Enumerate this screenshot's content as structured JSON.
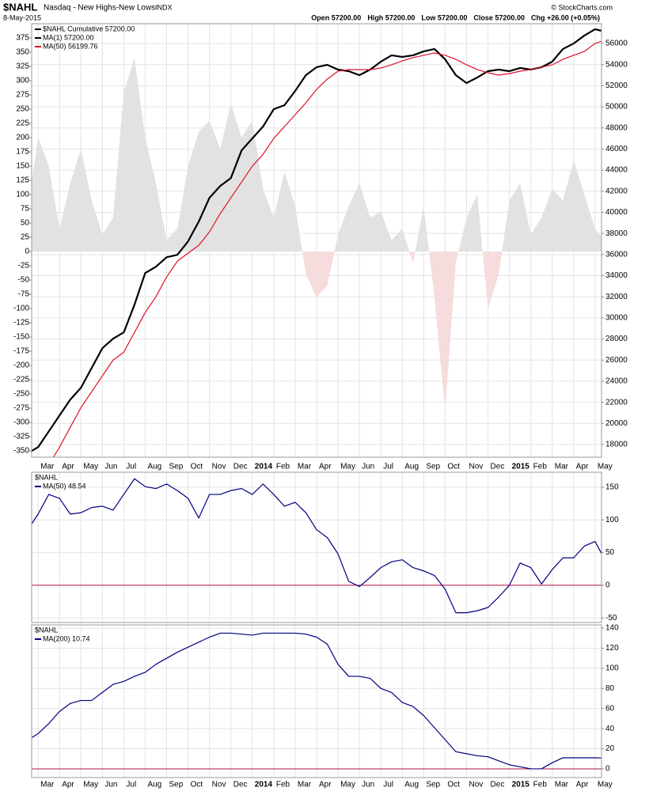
{
  "header": {
    "symbol": "$NAHL",
    "name": "Nasdaq - New Highs-New Lows",
    "exchange": "INDX",
    "date": "8-May-2015",
    "quote": [
      "Open 57200.00",
      "High 57200.00",
      "Low 57200.00",
      "Close 57200.00",
      "Chg +26.00 (+0.05%)"
    ],
    "copyright": "© StockCharts.com"
  },
  "chart_data": [
    {
      "type": "line",
      "yaxis_position": "left",
      "grid": true,
      "legend_title": "$NAHL Cumulative 57200.00",
      "x": [
        -0.3,
        0,
        0.5,
        1,
        1.5,
        2,
        2.5,
        3,
        3.5,
        4,
        4.5,
        5,
        5.5,
        6,
        6.5,
        7,
        7.5,
        8,
        8.5,
        9,
        9.5,
        10,
        10.5,
        11,
        11.5,
        12,
        12.5,
        13,
        13.5,
        14,
        14.5,
        15,
        15.5,
        16,
        16.5,
        17,
        17.5,
        18,
        18.5,
        19,
        19.5,
        20,
        20.5,
        21,
        21.5,
        22,
        22.5,
        23,
        23.5,
        24,
        24.5,
        25,
        25.5,
        26,
        26.3
      ],
      "xlim": [
        -0.3,
        26.3
      ],
      "xticks": [
        {
          "value": 0,
          "label": "Mar"
        },
        {
          "value": 1,
          "label": "Apr"
        },
        {
          "value": 2,
          "label": "May"
        },
        {
          "value": 3,
          "label": "Jun"
        },
        {
          "value": 4,
          "label": "Jul"
        },
        {
          "value": 5,
          "label": "Aug"
        },
        {
          "value": 6,
          "label": "Sep"
        },
        {
          "value": 7,
          "label": "Oct"
        },
        {
          "value": 8,
          "label": "Nov"
        },
        {
          "value": 9,
          "label": "Dec"
        },
        {
          "value": 10,
          "label": "2014"
        },
        {
          "value": 11,
          "label": "Feb"
        },
        {
          "value": 12,
          "label": "Mar"
        },
        {
          "value": 13,
          "label": "Apr"
        },
        {
          "value": 14,
          "label": "May"
        },
        {
          "value": 15,
          "label": "Jun"
        },
        {
          "value": 16,
          "label": "Jul"
        },
        {
          "value": 17,
          "label": "Aug"
        },
        {
          "value": 18,
          "label": "Sep"
        },
        {
          "value": 19,
          "label": "Oct"
        },
        {
          "value": 20,
          "label": "Nov"
        },
        {
          "value": 21,
          "label": "Dec"
        },
        {
          "value": 22,
          "label": "2015"
        },
        {
          "value": 23,
          "label": "Feb"
        },
        {
          "value": 24,
          "label": "Mar"
        },
        {
          "value": 25,
          "label": "Apr"
        },
        {
          "value": 26,
          "label": "May"
        }
      ],
      "ylim": [
        -361,
        400
      ],
      "yticks": [
        375,
        350,
        325,
        300,
        275,
        250,
        225,
        200,
        175,
        150,
        125,
        100,
        75,
        50,
        25,
        0,
        -25,
        -50,
        -75,
        -100,
        -125,
        -150,
        -175,
        -200,
        -225,
        -250,
        -275,
        -300,
        -325,
        -350
      ],
      "y2lim": [
        16800,
        57870
      ],
      "y2ticks": [
        56000,
        54000,
        52000,
        50000,
        48000,
        46000,
        44000,
        42000,
        40000,
        38000,
        36000,
        34000,
        32000,
        30000,
        28000,
        26000,
        24000,
        22000,
        20000,
        18000
      ],
      "area": {
        "positive_color": "#e2e2e2",
        "negative_color": "#f6dcdc",
        "values": [
          120,
          200,
          150,
          40,
          120,
          180,
          90,
          30,
          60,
          280,
          340,
          200,
          120,
          20,
          40,
          150,
          210,
          230,
          180,
          260,
          200,
          230,
          110,
          60,
          140,
          80,
          -40,
          -80,
          -60,
          30,
          80,
          120,
          60,
          70,
          20,
          40,
          -20,
          80,
          -80,
          -280,
          -20,
          60,
          100,
          -100,
          -40,
          90,
          120,
          30,
          60,
          110,
          90,
          160,
          100,
          40,
          26
        ]
      },
      "series": [
        {
          "name": "MA(1) 57200.00",
          "color": "#000000",
          "axis": "y2",
          "values": [
            17400,
            17750,
            19250,
            20750,
            22250,
            23375,
            25250,
            27125,
            28025,
            28625,
            31250,
            34250,
            34850,
            35750,
            35975,
            37250,
            39125,
            41375,
            42500,
            43250,
            45875,
            47000,
            48125,
            49775,
            50150,
            51500,
            53000,
            53750,
            53975,
            53525,
            53375,
            53000,
            53525,
            54275,
            54875,
            54725,
            54875,
            55250,
            55475,
            54500,
            53000,
            52250,
            52775,
            53375,
            53525,
            53375,
            53675,
            53525,
            53750,
            54275,
            55475,
            56000,
            56750,
            57350,
            57200
          ]
        },
        {
          "name": "MA(50) 56199.76",
          "color": "#e0102a",
          "axis": "y2",
          "values": [
            null,
            null,
            16100,
            17750,
            19625,
            21500,
            23000,
            24500,
            26000,
            26750,
            28625,
            30500,
            32000,
            33875,
            35375,
            36125,
            36875,
            38150,
            39875,
            41375,
            42875,
            44375,
            45500,
            47000,
            48125,
            49250,
            50375,
            51650,
            52625,
            53375,
            53525,
            53525,
            53525,
            53675,
            53975,
            54350,
            54650,
            54875,
            55100,
            54875,
            54500,
            53975,
            53525,
            53225,
            53000,
            53150,
            53375,
            53525,
            53750,
            53975,
            54500,
            54875,
            55250,
            56000,
            56200
          ]
        }
      ]
    },
    {
      "type": "line",
      "yaxis_position": "right",
      "grid": true,
      "title": "$NAHL",
      "hline": 0,
      "hline_color": "#b0104a",
      "x": [
        -0.3,
        0,
        0.5,
        1,
        1.5,
        2,
        2.5,
        3,
        3.5,
        4,
        4.5,
        5,
        5.5,
        6,
        6.5,
        7,
        7.5,
        8,
        8.5,
        9,
        9.5,
        10,
        10.5,
        11,
        11.5,
        12,
        12.5,
        13,
        13.5,
        14,
        14.5,
        15,
        15.5,
        16,
        16.5,
        17,
        17.5,
        18,
        18.5,
        19,
        19.5,
        20,
        20.5,
        21,
        21.5,
        22,
        22.5,
        23,
        23.5,
        24,
        24.5,
        25,
        25.5,
        26,
        26.3
      ],
      "xlim": [
        -0.3,
        26.3
      ],
      "xticks": [
        0,
        1,
        2,
        3,
        4,
        5,
        6,
        7,
        8,
        9,
        10,
        11,
        12,
        13,
        14,
        15,
        16,
        17,
        18,
        19,
        20,
        21,
        22,
        23,
        24,
        25,
        26
      ],
      "ylim": [
        -57,
        173
      ],
      "yticks": [
        150,
        100,
        50,
        0,
        -50
      ],
      "series": [
        {
          "name": "MA(50) 48.54",
          "color": "#000080",
          "values": [
            94,
            109,
            139,
            133,
            109,
            111,
            119,
            121,
            115,
            139,
            163,
            151,
            148,
            155,
            145,
            133,
            103,
            139,
            139,
            145,
            148,
            139,
            155,
            139,
            121,
            127,
            111,
            85,
            73,
            48,
            6,
            -2,
            12,
            27,
            36,
            39,
            27,
            22,
            15,
            -6,
            -42,
            -42,
            -39,
            -34,
            -18,
            0,
            34,
            27,
            2,
            24,
            42,
            42,
            60,
            67,
            48.54
          ]
        }
      ]
    },
    {
      "type": "line",
      "yaxis_position": "right",
      "grid": true,
      "title": "$NAHL",
      "hline": 0,
      "hline_color": "#b0104a",
      "x": [
        -0.3,
        0,
        0.5,
        1,
        1.5,
        2,
        2.5,
        3,
        3.5,
        4,
        4.5,
        5,
        5.5,
        6,
        6.5,
        7,
        7.5,
        8,
        8.5,
        9,
        9.5,
        10,
        10.5,
        11,
        11.5,
        12,
        12.5,
        13,
        13.5,
        14,
        14.5,
        15,
        15.5,
        16,
        16.5,
        17,
        17.5,
        18,
        18.5,
        19,
        19.5,
        20,
        20.5,
        21,
        21.5,
        22,
        22.5,
        23,
        23.5,
        24,
        24.5,
        25,
        25.5,
        26,
        26.3
      ],
      "xlim": [
        -0.3,
        26.3
      ],
      "xticks": [
        {
          "value": 0,
          "label": "Mar"
        },
        {
          "value": 1,
          "label": "Apr"
        },
        {
          "value": 2,
          "label": "May"
        },
        {
          "value": 3,
          "label": "Jun"
        },
        {
          "value": 4,
          "label": "Jul"
        },
        {
          "value": 5,
          "label": "Aug"
        },
        {
          "value": 6,
          "label": "Sep"
        },
        {
          "value": 7,
          "label": "Oct"
        },
        {
          "value": 8,
          "label": "Nov"
        },
        {
          "value": 9,
          "label": "Dec"
        },
        {
          "value": 10,
          "label": "2014"
        },
        {
          "value": 11,
          "label": "Feb"
        },
        {
          "value": 12,
          "label": "Mar"
        },
        {
          "value": 13,
          "label": "Apr"
        },
        {
          "value": 14,
          "label": "May"
        },
        {
          "value": 15,
          "label": "Jun"
        },
        {
          "value": 16,
          "label": "Jul"
        },
        {
          "value": 17,
          "label": "Aug"
        },
        {
          "value": 18,
          "label": "Sep"
        },
        {
          "value": 19,
          "label": "Oct"
        },
        {
          "value": 20,
          "label": "Nov"
        },
        {
          "value": 21,
          "label": "Dec"
        },
        {
          "value": 22,
          "label": "2015"
        },
        {
          "value": 23,
          "label": "Feb"
        },
        {
          "value": 24,
          "label": "Mar"
        },
        {
          "value": 25,
          "label": "Apr"
        },
        {
          "value": 26,
          "label": "May"
        }
      ],
      "ylim": [
        -8.7,
        143.2
      ],
      "yticks": [
        140,
        120,
        100,
        80,
        60,
        40,
        20,
        0
      ],
      "series": [
        {
          "name": "MA(200) 10.74",
          "color": "#000080",
          "values": [
            31,
            35,
            45,
            57,
            65,
            68,
            68,
            76,
            84,
            87,
            92,
            96,
            104,
            110,
            116,
            121,
            126,
            131,
            135,
            135,
            134,
            133,
            135,
            135,
            135,
            135,
            134,
            131,
            124,
            104,
            92,
            92,
            90,
            80,
            76,
            66,
            62,
            53,
            41,
            29,
            17,
            15,
            13,
            12,
            8,
            4,
            2,
            0,
            0,
            6,
            11,
            11,
            11,
            11,
            10.74
          ]
        }
      ]
    }
  ]
}
